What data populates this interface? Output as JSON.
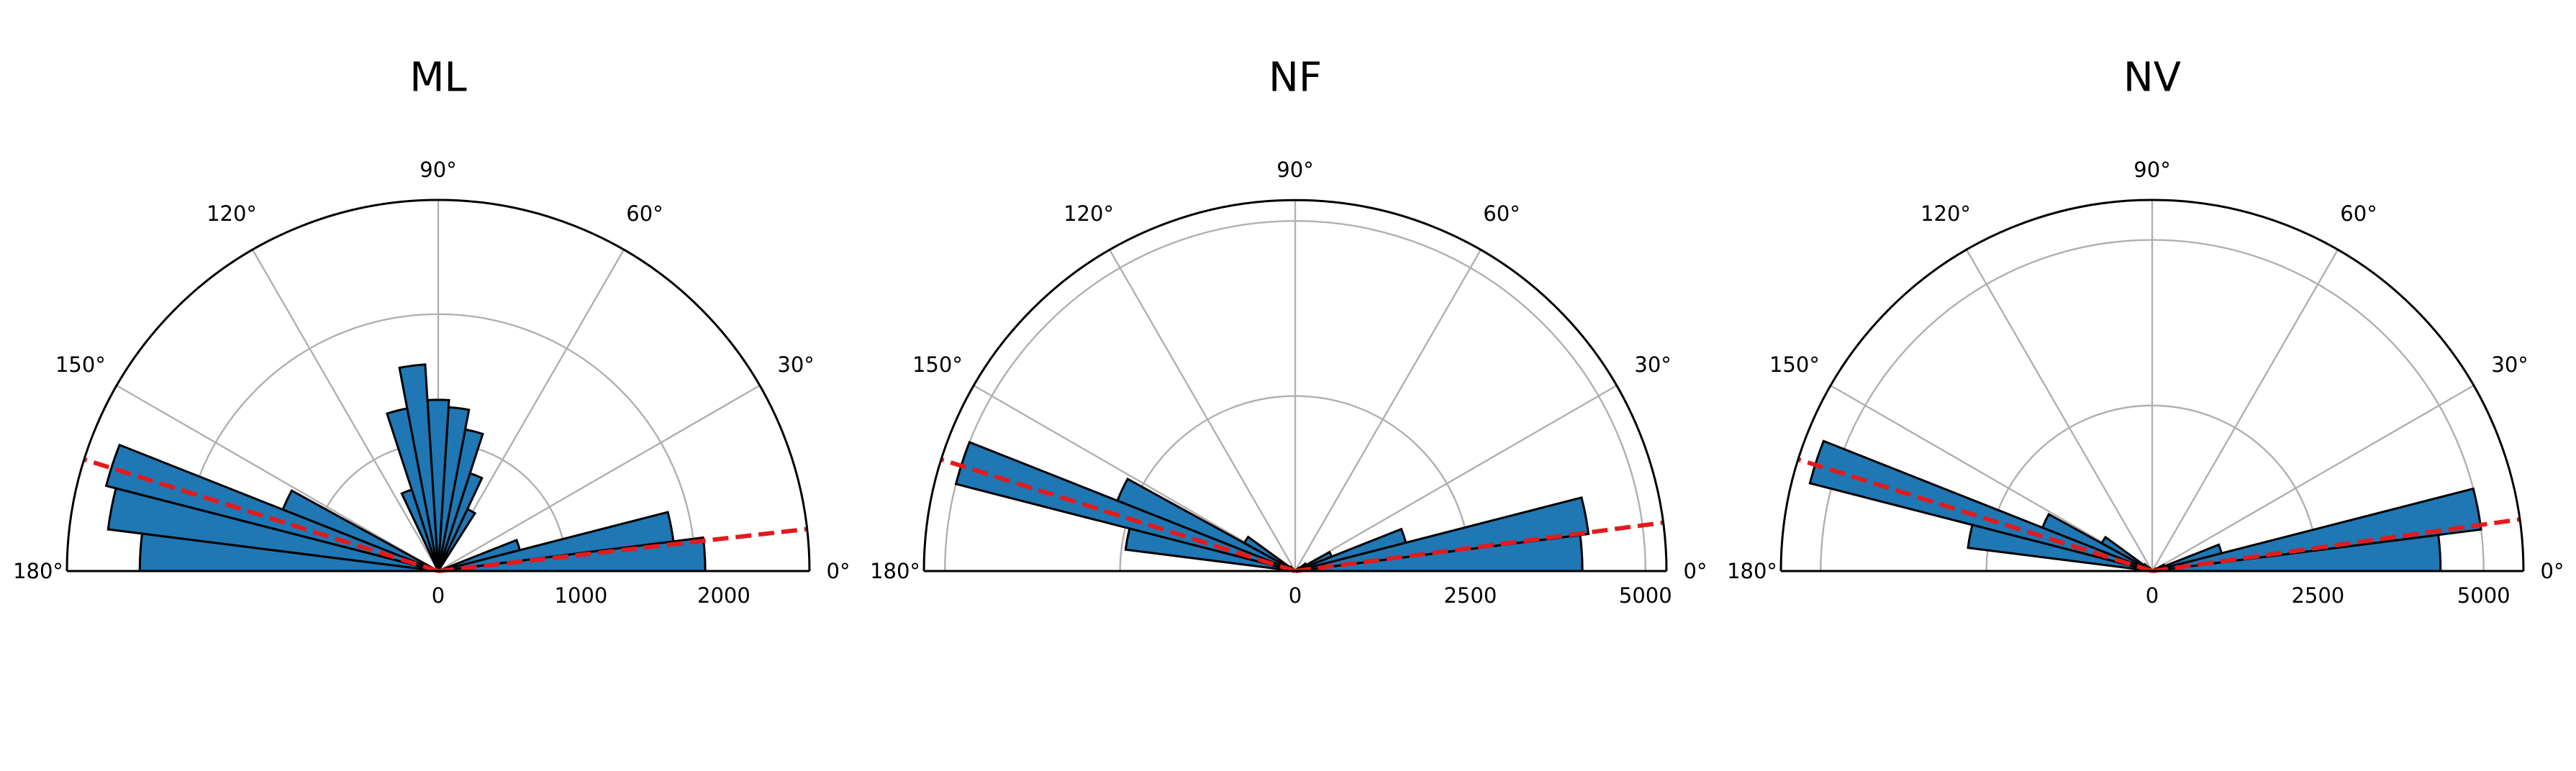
{
  "chart_data": [
    {
      "type": "polar-bar",
      "title": "ML",
      "theta_range_deg": [
        0,
        180
      ],
      "r_max": 2600,
      "r_ticks": [
        0,
        1000,
        2000
      ],
      "r_tick_labels": [
        "0",
        "1000",
        "2000"
      ],
      "r_gridlines": [
        900,
        1800
      ],
      "theta_ticks": [
        0,
        30,
        60,
        90,
        120,
        150,
        180
      ],
      "theta_tick_labels": [
        "0°",
        "30°",
        "60°",
        "90°",
        "120°",
        "150°",
        "180°"
      ],
      "grid": true,
      "bin_width_deg": 7.2,
      "bins": [
        {
          "theta_start": 0,
          "theta_end": 7.2,
          "r": 1870
        },
        {
          "theta_start": 7.2,
          "theta_end": 14.4,
          "r": 1660
        },
        {
          "theta_start": 14.4,
          "theta_end": 21.6,
          "r": 590
        },
        {
          "theta_start": 21.6,
          "theta_end": 28.8,
          "r": 0
        },
        {
          "theta_start": 28.8,
          "theta_end": 36,
          "r": 0
        },
        {
          "theta_start": 36,
          "theta_end": 43.2,
          "r": 0
        },
        {
          "theta_start": 43.2,
          "theta_end": 50.4,
          "r": 20
        },
        {
          "theta_start": 50.4,
          "theta_end": 57.6,
          "r": 20
        },
        {
          "theta_start": 57.6,
          "theta_end": 64.8,
          "r": 480
        },
        {
          "theta_start": 64.8,
          "theta_end": 72,
          "r": 720
        },
        {
          "theta_start": 72,
          "theta_end": 79.2,
          "r": 1010
        },
        {
          "theta_start": 79.2,
          "theta_end": 86.4,
          "r": 1150
        },
        {
          "theta_start": 86.4,
          "theta_end": 93.6,
          "r": 1200
        },
        {
          "theta_start": 93.6,
          "theta_end": 100.8,
          "r": 1450
        },
        {
          "theta_start": 100.8,
          "theta_end": 108,
          "r": 1160
        },
        {
          "theta_start": 108,
          "theta_end": 115.2,
          "r": 600
        },
        {
          "theta_start": 115.2,
          "theta_end": 122.4,
          "r": 20
        },
        {
          "theta_start": 122.4,
          "theta_end": 129.6,
          "r": 20
        },
        {
          "theta_start": 129.6,
          "theta_end": 136.8,
          "r": 0
        },
        {
          "theta_start": 136.8,
          "theta_end": 144,
          "r": 0
        },
        {
          "theta_start": 144,
          "theta_end": 151.2,
          "r": 0
        },
        {
          "theta_start": 151.2,
          "theta_end": 158.4,
          "r": 1170
        },
        {
          "theta_start": 158.4,
          "theta_end": 165.6,
          "r": 2400
        },
        {
          "theta_start": 165.6,
          "theta_end": 172.8,
          "r": 2330
        },
        {
          "theta_start": 172.8,
          "theta_end": 180,
          "r": 2090
        }
      ],
      "reference_lines_deg": [
        6.5,
        162.5
      ],
      "bar_color": "#1f77b4",
      "reference_line_color": "#e41a1c"
    },
    {
      "type": "polar-bar",
      "title": "NF",
      "theta_range_deg": [
        0,
        180
      ],
      "r_max": 5300,
      "r_ticks": [
        0,
        2500,
        5000
      ],
      "r_tick_labels": [
        "0",
        "2500",
        "5000"
      ],
      "r_gridlines": [
        2500,
        5000
      ],
      "theta_ticks": [
        0,
        30,
        60,
        90,
        120,
        150,
        180
      ],
      "theta_tick_labels": [
        "0°",
        "30°",
        "60°",
        "90°",
        "120°",
        "150°",
        "180°"
      ],
      "grid": true,
      "bin_width_deg": 7.2,
      "bins": [
        {
          "theta_start": 0,
          "theta_end": 7.2,
          "r": 4100
        },
        {
          "theta_start": 7.2,
          "theta_end": 14.4,
          "r": 4220
        },
        {
          "theta_start": 14.4,
          "theta_end": 21.6,
          "r": 1630
        },
        {
          "theta_start": 21.6,
          "theta_end": 28.8,
          "r": 560
        },
        {
          "theta_start": 28.8,
          "theta_end": 36,
          "r": 180
        },
        {
          "theta_start": 36,
          "theta_end": 43.2,
          "r": 60
        },
        {
          "theta_start": 43.2,
          "theta_end": 50.4,
          "r": 10
        },
        {
          "theta_start": 50.4,
          "theta_end": 57.6,
          "r": 10
        },
        {
          "theta_start": 57.6,
          "theta_end": 64.8,
          "r": 10
        },
        {
          "theta_start": 64.8,
          "theta_end": 72,
          "r": 10
        },
        {
          "theta_start": 72,
          "theta_end": 79.2,
          "r": 10
        },
        {
          "theta_start": 79.2,
          "theta_end": 86.4,
          "r": 10
        },
        {
          "theta_start": 86.4,
          "theta_end": 93.6,
          "r": 10
        },
        {
          "theta_start": 93.6,
          "theta_end": 100.8,
          "r": 10
        },
        {
          "theta_start": 100.8,
          "theta_end": 108,
          "r": 10
        },
        {
          "theta_start": 108,
          "theta_end": 115.2,
          "r": 10
        },
        {
          "theta_start": 115.2,
          "theta_end": 122.4,
          "r": 10
        },
        {
          "theta_start": 122.4,
          "theta_end": 129.6,
          "r": 10
        },
        {
          "theta_start": 129.6,
          "theta_end": 136.8,
          "r": 30
        },
        {
          "theta_start": 136.8,
          "theta_end": 144,
          "r": 90
        },
        {
          "theta_start": 144,
          "theta_end": 151.2,
          "r": 830
        },
        {
          "theta_start": 151.2,
          "theta_end": 158.4,
          "r": 2730
        },
        {
          "theta_start": 158.4,
          "theta_end": 165.6,
          "r": 5000
        },
        {
          "theta_start": 165.6,
          "theta_end": 172.8,
          "r": 2440
        },
        {
          "theta_start": 172.8,
          "theta_end": 180,
          "r": 0
        }
      ],
      "reference_lines_deg": [
        7.5,
        162.5
      ],
      "bar_color": "#1f77b4",
      "reference_line_color": "#e41a1c"
    },
    {
      "type": "polar-bar",
      "title": "NV",
      "theta_range_deg": [
        0,
        180
      ],
      "r_max": 5600,
      "r_ticks": [
        0,
        2500,
        5000
      ],
      "r_tick_labels": [
        "0",
        "2500",
        "5000"
      ],
      "r_gridlines": [
        2500,
        5000
      ],
      "theta_ticks": [
        0,
        30,
        60,
        90,
        120,
        150,
        180
      ],
      "theta_tick_labels": [
        "0°",
        "30°",
        "60°",
        "90°",
        "120°",
        "150°",
        "180°"
      ],
      "grid": true,
      "bin_width_deg": 7.2,
      "bins": [
        {
          "theta_start": 0,
          "theta_end": 7.2,
          "r": 4350
        },
        {
          "theta_start": 7.2,
          "theta_end": 14.4,
          "r": 5000
        },
        {
          "theta_start": 14.4,
          "theta_end": 21.6,
          "r": 1080
        },
        {
          "theta_start": 21.6,
          "theta_end": 28.8,
          "r": 200
        },
        {
          "theta_start": 28.8,
          "theta_end": 36,
          "r": 60
        },
        {
          "theta_start": 36,
          "theta_end": 43.2,
          "r": 20
        },
        {
          "theta_start": 43.2,
          "theta_end": 50.4,
          "r": 10
        },
        {
          "theta_start": 50.4,
          "theta_end": 57.6,
          "r": 10
        },
        {
          "theta_start": 57.6,
          "theta_end": 64.8,
          "r": 10
        },
        {
          "theta_start": 64.8,
          "theta_end": 72,
          "r": 10
        },
        {
          "theta_start": 72,
          "theta_end": 79.2,
          "r": 10
        },
        {
          "theta_start": 79.2,
          "theta_end": 86.4,
          "r": 10
        },
        {
          "theta_start": 86.4,
          "theta_end": 93.6,
          "r": 10
        },
        {
          "theta_start": 93.6,
          "theta_end": 100.8,
          "r": 10
        },
        {
          "theta_start": 100.8,
          "theta_end": 108,
          "r": 10
        },
        {
          "theta_start": 108,
          "theta_end": 115.2,
          "r": 10
        },
        {
          "theta_start": 115.2,
          "theta_end": 122.4,
          "r": 10
        },
        {
          "theta_start": 122.4,
          "theta_end": 129.6,
          "r": 20
        },
        {
          "theta_start": 129.6,
          "theta_end": 136.8,
          "r": 60
        },
        {
          "theta_start": 136.8,
          "theta_end": 144,
          "r": 150
        },
        {
          "theta_start": 144,
          "theta_end": 151.2,
          "r": 870
        },
        {
          "theta_start": 151.2,
          "theta_end": 158.4,
          "r": 1780
        },
        {
          "theta_start": 158.4,
          "theta_end": 165.6,
          "r": 5330
        },
        {
          "theta_start": 165.6,
          "theta_end": 172.8,
          "r": 2800
        },
        {
          "theta_start": 172.8,
          "theta_end": 180,
          "r": 0
        }
      ],
      "reference_lines_deg": [
        8,
        162.5
      ],
      "bar_color": "#1f77b4",
      "reference_line_color": "#e41a1c"
    }
  ]
}
